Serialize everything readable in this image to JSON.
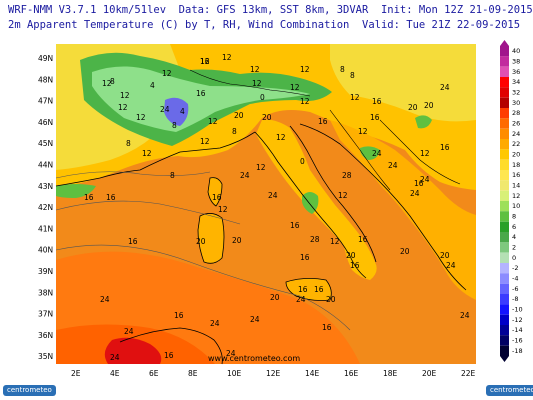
{
  "header": {
    "line1": "WRF-NMM V3.7.1 10km/51lev  Data: GFS 13km, SST 8km, 3DVAR  Init: Mon 12Z 21-09-2015",
    "line2": "2m Apparent Temperature (C) by T, RH, Wind Combination  Valid: Tue 21Z 22-09-2015"
  },
  "axes": {
    "lat_labels": [
      "49N",
      "48N",
      "47N",
      "46N",
      "45N",
      "44N",
      "43N",
      "42N",
      "41N",
      "40N",
      "39N",
      "38N",
      "37N",
      "36N",
      "35N"
    ],
    "lon_labels": [
      "2E",
      "4E",
      "6E",
      "8E",
      "10E",
      "12E",
      "14E",
      "16E",
      "18E",
      "20E",
      "22E"
    ]
  },
  "colorbar": {
    "values": [
      "40",
      "38",
      "36",
      "34",
      "32",
      "30",
      "28",
      "26",
      "24",
      "22",
      "20",
      "18",
      "16",
      "14",
      "12",
      "10",
      "8",
      "6",
      "4",
      "2",
      "0",
      "-2",
      "-4",
      "-6",
      "-8",
      "-10",
      "-12",
      "-14",
      "-16",
      "-18"
    ],
    "colors": [
      "#a0148c",
      "#c22a9e",
      "#e050b4",
      "#ff0000",
      "#e00000",
      "#b40000",
      "#ff3c00",
      "#ff6a00",
      "#ff8c00",
      "#ffaa00",
      "#ffc800",
      "#ffdc2a",
      "#ffe650",
      "#f0e86e",
      "#d8f078",
      "#9ee05a",
      "#5ec040",
      "#2aa028",
      "#4aa84a",
      "#7ec87e",
      "#b4e0b4",
      "#b4b4ff",
      "#8c8cff",
      "#6464ff",
      "#3c3cff",
      "#1414ff",
      "#0000c8",
      "#000096",
      "#000064",
      "#000032"
    ]
  },
  "contour_labels": [
    "12",
    "12",
    "8",
    "12",
    "12",
    "12",
    "12",
    "12",
    "4",
    "8",
    "12",
    "8",
    "8",
    "12",
    "12",
    "16",
    "20",
    "20",
    "20",
    "16",
    "12",
    "0",
    "12",
    "12",
    "16",
    "16",
    "16",
    "16",
    "12",
    "12",
    "16",
    "12",
    "16",
    "20",
    "20",
    "16",
    "20",
    "16",
    "20",
    "16",
    "16",
    "24",
    "20",
    "16",
    "16",
    "24",
    "24",
    "24",
    "16",
    "24",
    "24",
    "24",
    "16",
    "24",
    "20",
    "24",
    "16",
    "24",
    "24",
    "20",
    "24",
    "24",
    "28",
    "28",
    "24",
    "24",
    "12",
    "8",
    "16",
    "4",
    "12",
    "12",
    "12",
    "12",
    "8",
    "8",
    "0",
    "12",
    "20",
    "24",
    "24",
    "16",
    "12",
    "16"
  ],
  "watermark": "www.centrometeo.com",
  "logos": {
    "left": "centrometeo",
    "right": "centrometeo"
  },
  "palette": {
    "sea_warm": "#f28a1a",
    "sea_hot": "#ff6a00",
    "land_mild": "#ffc200",
    "land_cool": "#f5dc3a",
    "alps_green": "#4cb448",
    "alps_light": "#8ee08a",
    "alps_blue": "#6a6ae8",
    "header_text": "#1a1aa0",
    "coast": "#000000",
    "contour": "#555555"
  }
}
